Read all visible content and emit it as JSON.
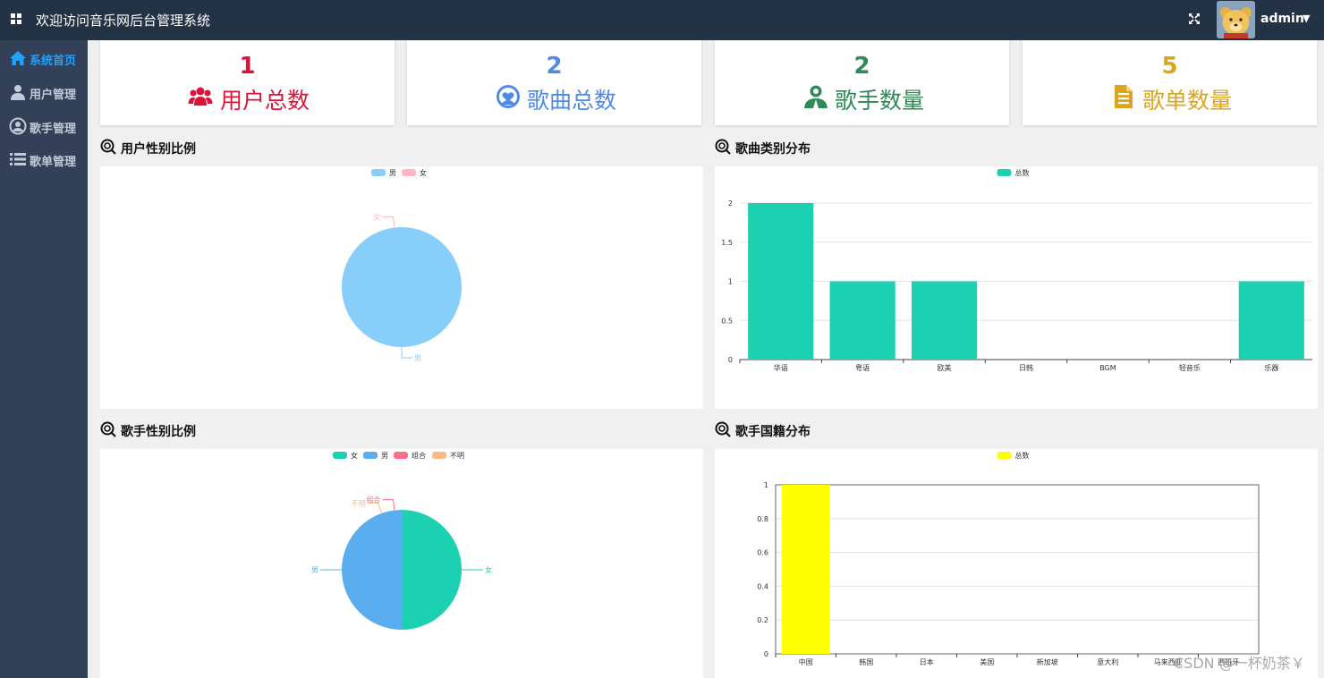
{
  "header": {
    "title": "欢迎访问音乐网后台管理系统",
    "username": "admin",
    "caret": "▼"
  },
  "sidebar": {
    "items": [
      {
        "label": "系统首页",
        "icon": "home-icon",
        "active": true
      },
      {
        "label": "用户管理",
        "icon": "user-icon",
        "active": false
      },
      {
        "label": "歌手管理",
        "icon": "singer-icon",
        "active": false
      },
      {
        "label": "歌单管理",
        "icon": "list-icon",
        "active": false
      }
    ]
  },
  "stats": [
    {
      "value": "1",
      "label": "用户总数",
      "icon": "users-icon",
      "color": "#dc143c"
    },
    {
      "value": "2",
      "label": "歌曲总数",
      "icon": "music-heart-icon",
      "color": "#4f8be6"
    },
    {
      "value": "2",
      "label": "歌手数量",
      "icon": "person-icon",
      "color": "#2e8b57"
    },
    {
      "value": "5",
      "label": "歌单数量",
      "icon": "document-icon",
      "color": "#daa520"
    }
  ],
  "sections": {
    "user_gender": "用户性别比例",
    "song_category": "歌曲类别分布",
    "singer_gender": "歌手性别比例",
    "singer_country": "歌手国籍分布"
  },
  "chart_data": [
    {
      "type": "pie",
      "legend": [
        "男",
        "女"
      ],
      "slices": [
        {
          "name": "男",
          "value": 1,
          "color": "#87cefa"
        },
        {
          "name": "女",
          "value": 0,
          "color": "#ffb6c1"
        }
      ],
      "legend_position": "top-center"
    },
    {
      "type": "bar",
      "legend": [
        "总数"
      ],
      "categories": [
        "华语",
        "粤语",
        "欧美",
        "日韩",
        "BGM",
        "轻音乐",
        "乐器"
      ],
      "series": [
        {
          "name": "总数",
          "values": [
            2,
            1,
            1,
            0,
            0,
            0,
            1
          ],
          "color": "#1bd1b2"
        }
      ],
      "ylim": [
        0,
        2
      ],
      "yticks": [
        "0",
        "0.5",
        "1",
        "1.5",
        "2"
      ],
      "grid": true,
      "legend_position": "top-center"
    },
    {
      "type": "pie",
      "legend": [
        "女",
        "男",
        "组合",
        "不明"
      ],
      "slices": [
        {
          "name": "女",
          "value": 1,
          "color": "#1bd1b2"
        },
        {
          "name": "男",
          "value": 1,
          "color": "#5aaef0"
        },
        {
          "name": "组合",
          "value": 0,
          "color": "#fd6f86"
        },
        {
          "name": "不明",
          "value": 0,
          "color": "#ffb980"
        }
      ],
      "legend_position": "top-center"
    },
    {
      "type": "bar",
      "legend": [
        "总数"
      ],
      "categories": [
        "中国",
        "韩国",
        "日本",
        "美国",
        "新加坡",
        "意大利",
        "马来西亚",
        "西班牙"
      ],
      "series": [
        {
          "name": "总数",
          "values": [
            1,
            0,
            0,
            0,
            0,
            0,
            0,
            0
          ],
          "color": "#ffff00"
        }
      ],
      "ylim": [
        0,
        1
      ],
      "yticks": [
        "0",
        "0.2",
        "0.4",
        "0.6",
        "0.8",
        "1"
      ],
      "grid": true,
      "legend_position": "top-center"
    }
  ],
  "watermark": "CSDN @一杯奶茶￥"
}
